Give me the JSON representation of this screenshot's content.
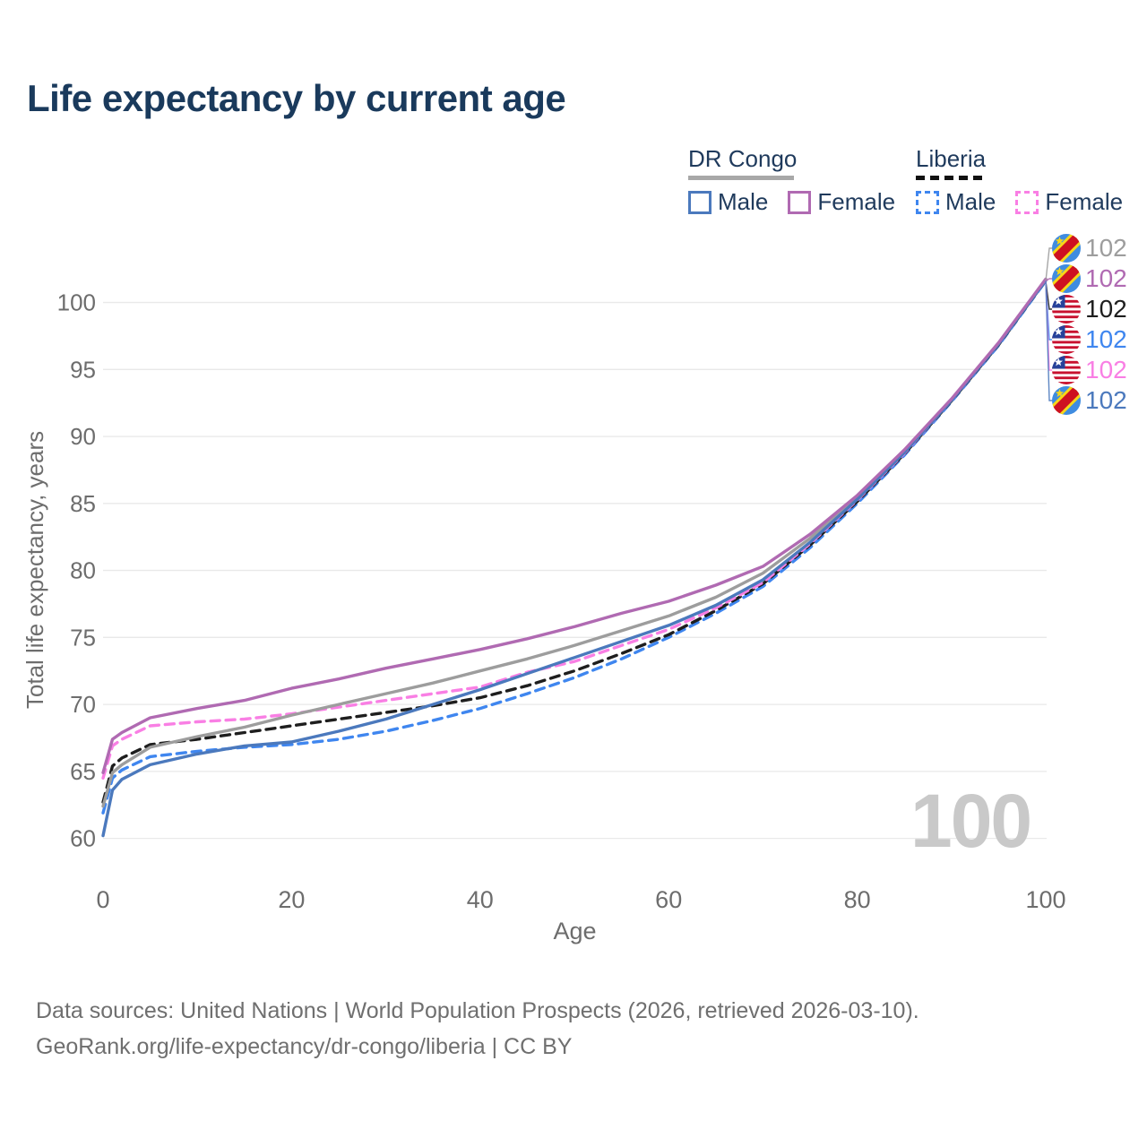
{
  "title": "Life expectancy by current age",
  "legend": {
    "groups": [
      {
        "label": "DR Congo",
        "style": "solid",
        "items": [
          {
            "label": "Male",
            "series": "cd_m"
          },
          {
            "label": "Female",
            "series": "cd_f"
          }
        ]
      },
      {
        "label": "Liberia",
        "style": "dashed",
        "items": [
          {
            "label": "Male",
            "series": "lr_m"
          },
          {
            "label": "Female",
            "series": "lr_f"
          }
        ]
      }
    ]
  },
  "watermark": "100",
  "footer": {
    "line1": "Data sources: United Nations | World Population Prospects (2026, retrieved 2026-03-10).",
    "line2": "GeoRank.org/life-expectancy/dr-congo/liberia | CC BY"
  },
  "chart_data": {
    "type": "line",
    "xlabel": "Age",
    "ylabel": "Total life expectancy, years",
    "xlim": [
      0,
      100
    ],
    "ylim": [
      60,
      102
    ],
    "x_ticks": [
      0,
      20,
      40,
      60,
      80,
      100
    ],
    "y_ticks": [
      60,
      65,
      70,
      75,
      80,
      85,
      90,
      95,
      100
    ],
    "grid": "horizontal",
    "ages": [
      0,
      1,
      2,
      5,
      10,
      15,
      20,
      25,
      30,
      35,
      40,
      45,
      50,
      55,
      60,
      65,
      70,
      75,
      80,
      85,
      90,
      95,
      100
    ],
    "series": [
      {
        "id": "lr_m",
        "name": "Liberia Male",
        "color": "#3f86ef",
        "dash": true,
        "values": [
          61.9,
          64.5,
          65.1,
          66.1,
          66.5,
          66.8,
          67.0,
          67.4,
          68.0,
          68.8,
          69.7,
          70.8,
          72.0,
          73.4,
          75.0,
          76.8,
          78.8,
          81.7,
          85.0,
          88.6,
          92.6,
          96.8,
          101.6
        ]
      },
      {
        "id": "lr_t",
        "name": "Liberia",
        "color": "#1e1e1e",
        "dash": true,
        "values": [
          62.7,
          65.4,
          66.0,
          67.0,
          67.4,
          67.9,
          68.4,
          68.9,
          69.4,
          69.9,
          70.5,
          71.4,
          72.5,
          73.8,
          75.2,
          77.0,
          79.0,
          81.9,
          85.15,
          88.7,
          92.65,
          96.85,
          101.65
        ]
      },
      {
        "id": "lr_f",
        "name": "Liberia Female",
        "color": "#f97fe4",
        "dash": true,
        "values": [
          64.5,
          66.9,
          67.4,
          68.4,
          68.7,
          68.9,
          69.3,
          69.8,
          70.3,
          70.8,
          71.3,
          72.4,
          73.2,
          74.4,
          75.6,
          77.2,
          79.1,
          82.0,
          85.25,
          88.75,
          92.7,
          96.9,
          101.7
        ]
      },
      {
        "id": "cd_t",
        "name": "DR Congo",
        "color": "#9d9d9d",
        "dash": false,
        "values": [
          62.4,
          64.9,
          65.5,
          66.8,
          67.6,
          68.3,
          69.2,
          70.0,
          70.8,
          71.6,
          72.5,
          73.4,
          74.4,
          75.5,
          76.6,
          78.0,
          79.8,
          82.4,
          85.45,
          88.9,
          92.75,
          96.95,
          101.7
        ]
      },
      {
        "id": "cd_m",
        "name": "DR Congo Male",
        "color": "#4b79bd",
        "dash": false,
        "values": [
          60.2,
          63.6,
          64.4,
          65.5,
          66.3,
          66.9,
          67.2,
          68.0,
          68.9,
          70.0,
          71.1,
          72.3,
          73.5,
          74.7,
          75.9,
          77.4,
          79.3,
          82.1,
          85.3,
          88.8,
          92.7,
          96.9,
          101.65
        ]
      },
      {
        "id": "cd_f",
        "name": "DR Congo Female",
        "color": "#b06ab2",
        "dash": false,
        "values": [
          64.9,
          67.4,
          67.9,
          69.0,
          69.7,
          70.3,
          71.2,
          71.9,
          72.7,
          73.4,
          74.1,
          74.9,
          75.8,
          76.8,
          77.7,
          78.9,
          80.3,
          82.7,
          85.6,
          89.0,
          92.8,
          97.0,
          101.75
        ]
      }
    ],
    "end_labels": [
      {
        "series": "cd_t",
        "flag": "cd",
        "text": "102"
      },
      {
        "series": "cd_f",
        "flag": "cd",
        "text": "102"
      },
      {
        "series": "lr_t",
        "flag": "lr",
        "text": "102"
      },
      {
        "series": "lr_m",
        "flag": "lr",
        "text": "102"
      },
      {
        "series": "lr_f",
        "flag": "lr",
        "text": "102"
      },
      {
        "series": "cd_m",
        "flag": "cd",
        "text": "102"
      }
    ],
    "flag_colors": {
      "cd": {
        "field": "#3f8ce0",
        "stripe": "#ce1021",
        "border": "#f7d618",
        "star": "#f7d618"
      },
      "lr": {
        "red": "#c8102e",
        "white": "#ffffff",
        "canton": "#26419a",
        "star": "#ffffff"
      }
    }
  }
}
